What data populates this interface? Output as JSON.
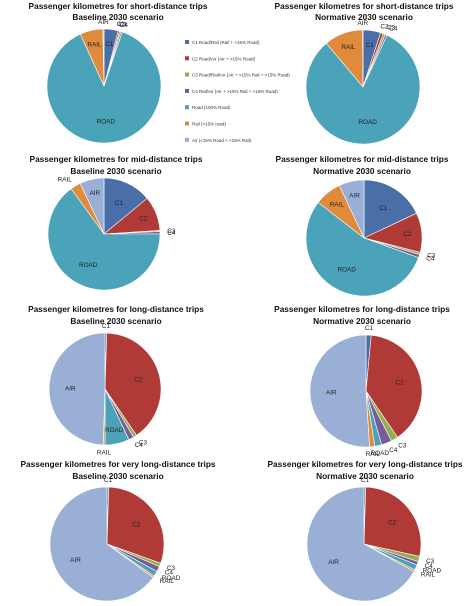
{
  "colors": {
    "C1": "#4a6fa8",
    "C2": "#b03a36",
    "C3": "#93ad52",
    "C4": "#7a5b99",
    "ROAD": "#4aa3b8",
    "RAIL": "#e08a3c",
    "AIR": "#9aafd6"
  },
  "legend": [
    {
      "key": "C1",
      "text": "C1 Road/Rail (Rail + >15% Road)"
    },
    {
      "key": "C2",
      "text": "C2 Road/Air (Air + >15% Road)"
    },
    {
      "key": "C3",
      "text": "C3 Road/Rail/Air (Air + >15% Rail + >15% Road)"
    },
    {
      "key": "C4",
      "text": "C4 Rail/Air (Air + >15% Rail + <15% Road)"
    },
    {
      "key": "ROAD",
      "text": "Road   (100% Road)"
    },
    {
      "key": "RAIL",
      "text": "Rail   (>15% road)"
    },
    {
      "key": "AIR",
      "text": "Air   (<15% Road + <15% Rail)"
    }
  ],
  "chart_data": [
    {
      "type": "pie",
      "title": "Passenger kilometres for short-distance trips",
      "subtitle": "Baseline 2030 scenario",
      "labels": [
        "C1",
        "C2",
        "C3",
        "C4",
        "ROAD",
        "RAIL",
        "AIR"
      ],
      "values": [
        4,
        0.4,
        0.4,
        0.4,
        88,
        6.5,
        0.3
      ]
    },
    {
      "type": "pie",
      "title": "Passenger kilometres for short-distance trips",
      "subtitle": "Normative 2030 scenario",
      "labels": [
        "C1",
        "C2",
        "C3",
        "C4",
        "ROAD",
        "RAIL",
        "AIR"
      ],
      "values": [
        5,
        0.8,
        0.6,
        0.5,
        82,
        11,
        0.1
      ]
    },
    {
      "type": "pie",
      "title": "Passenger kilometres for mid-distance trips",
      "subtitle": "Baseline 2030 scenario",
      "labels": [
        "C1",
        "C2",
        "C3",
        "C4",
        "ROAD",
        "RAIL",
        "AIR"
      ],
      "values": [
        14,
        10,
        0.3,
        0.7,
        65,
        3,
        7
      ]
    },
    {
      "type": "pie",
      "title": "Passenger kilometres for mid-distance trips",
      "subtitle": "Normative 2030 scenario",
      "labels": [
        "C1",
        "C2",
        "C3",
        "C4",
        "ROAD",
        "RAIL",
        "AIR"
      ],
      "values": [
        18,
        11,
        0.6,
        0.9,
        55,
        7.5,
        7
      ]
    },
    {
      "type": "pie",
      "title": "Passenger kilometres for long-distance trips",
      "subtitle": "Baseline 2030 scenario",
      "labels": [
        "C1",
        "C2",
        "C3",
        "C4",
        "ROAD",
        "RAIL",
        "AIR"
      ],
      "values": [
        0.5,
        40,
        1,
        1.5,
        7,
        0.5,
        49.5
      ]
    },
    {
      "type": "pie",
      "title": "Passenger kilometres for long-distance trips",
      "subtitle": "Normative 2030 scenario",
      "labels": [
        "C1",
        "C2",
        "C3",
        "C4",
        "ROAD",
        "RAIL",
        "AIR"
      ],
      "values": [
        1.5,
        39,
        2,
        3,
        2,
        1.5,
        51
      ]
    },
    {
      "type": "pie",
      "title": "Passenger kilometres for very long-distance trips",
      "subtitle": "Baseline 2030 scenario",
      "labels": [
        "C1",
        "C2",
        "C3",
        "C4",
        "ROAD",
        "RAIL",
        "AIR"
      ],
      "values": [
        0.5,
        30,
        1,
        1.5,
        1.5,
        0.5,
        65
      ]
    },
    {
      "type": "pie",
      "title": "Passenger kilometres for very long-distance trips",
      "subtitle": "Normative 2030 scenario",
      "labels": [
        "C1",
        "C2",
        "C3",
        "C4",
        "ROAD",
        "RAIL",
        "AIR"
      ],
      "values": [
        0.5,
        28,
        1.5,
        1,
        1.5,
        0.5,
        67
      ]
    }
  ]
}
